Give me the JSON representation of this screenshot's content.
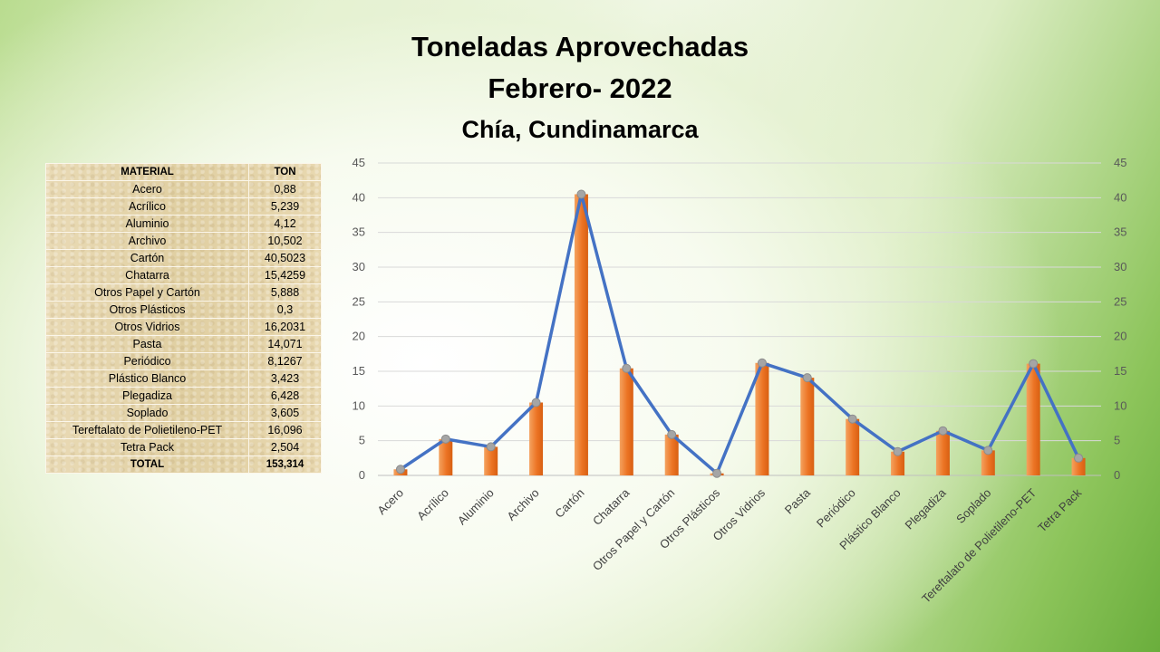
{
  "title_line1": "Toneladas Aprovechadas",
  "title_line2": "Febrero- 2022",
  "subtitle": "Chía, Cundinamarca",
  "table": {
    "header": [
      "MATERIAL",
      "TON"
    ],
    "rows": [
      [
        "Acero",
        "0,88"
      ],
      [
        "Acrílico",
        "5,239"
      ],
      [
        "Aluminio",
        "4,12"
      ],
      [
        "Archivo",
        "10,502"
      ],
      [
        "Cartón",
        "40,5023"
      ],
      [
        "Chatarra",
        "15,4259"
      ],
      [
        "Otros Papel y Cartón",
        "5,888"
      ],
      [
        "Otros Plásticos",
        "0,3"
      ],
      [
        "Otros Vidrios",
        "16,2031"
      ],
      [
        "Pasta",
        "14,071"
      ],
      [
        "Periódico",
        "8,1267"
      ],
      [
        "Plástico Blanco",
        "3,423"
      ],
      [
        "Plegadiza",
        "6,428"
      ],
      [
        "Soplado",
        "3,605"
      ],
      [
        "Tereftalato de Polietileno-PET",
        "16,096"
      ],
      [
        "Tetra Pack",
        "2,504"
      ]
    ],
    "total": [
      "TOTAL",
      "153,314"
    ]
  },
  "chart_data": {
    "type": "bar",
    "categories": [
      "Acero",
      "Acrílico",
      "Aluminio",
      "Archivo",
      "Cartón",
      "Chatarra",
      "Otros Papel y Cartón",
      "Otros Plásticos",
      "Otros Vidrios",
      "Pasta",
      "Periódico",
      "Plástico Blanco",
      "Plegadiza",
      "Soplado",
      "Tereftalato de Polietileno-PET",
      "Tetra Pack"
    ],
    "series": [
      {
        "type": "bar",
        "values": [
          0.88,
          5.239,
          4.12,
          10.502,
          40.5023,
          15.4259,
          5.888,
          0.3,
          16.2031,
          14.071,
          8.1267,
          3.423,
          6.428,
          3.605,
          16.096,
          2.504
        ],
        "color": "#ed7d31"
      },
      {
        "type": "line",
        "values": [
          0.88,
          5.239,
          4.12,
          10.502,
          40.5023,
          15.4259,
          5.888,
          0.3,
          16.2031,
          14.071,
          8.1267,
          3.423,
          6.428,
          3.605,
          16.096,
          2.504
        ],
        "color": "#4472c4"
      }
    ],
    "ylim": [
      0,
      45
    ],
    "yticks": [
      0,
      5,
      10,
      15,
      20,
      25,
      30,
      35,
      40,
      45
    ],
    "secondary_axis": true,
    "grid": true,
    "legend": "none"
  }
}
